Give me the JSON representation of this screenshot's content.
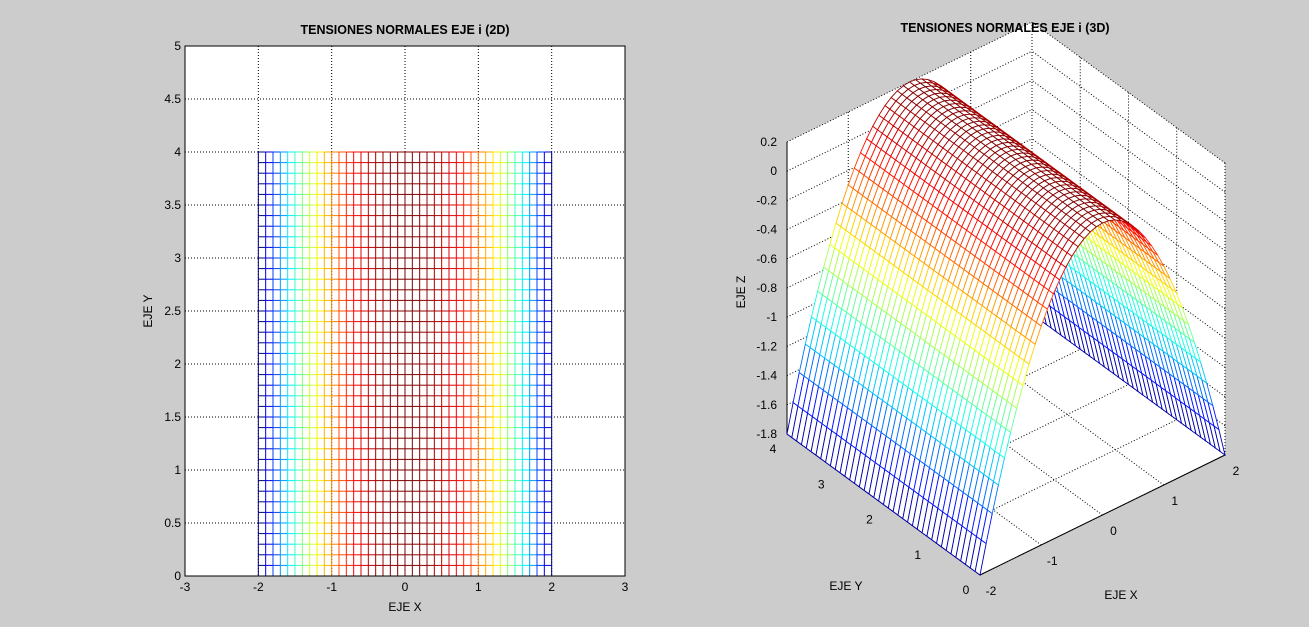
{
  "chart_data": [
    {
      "type": "heatmap",
      "title": "TENSIONES NORMALES EJE i (2D)",
      "xlabel": "EJE X",
      "ylabel": "EJE Y",
      "xlim": [
        -3,
        3
      ],
      "ylim": [
        0,
        5
      ],
      "xticks": [
        "-3",
        "-2",
        "-1",
        "0",
        "1",
        "2",
        "3"
      ],
      "yticks": [
        "0",
        "0.5",
        "1",
        "1.5",
        "2",
        "2.5",
        "3",
        "3.5",
        "4",
        "4.5",
        "5"
      ],
      "grid": true,
      "mesh": {
        "x_range": [
          -2,
          2
        ],
        "x_step": 0.1,
        "y_range": [
          0,
          4
        ],
        "y_step": 0.1,
        "z_by_x": [
          -1.8,
          -1.605,
          -1.42,
          -1.245,
          -1.08,
          -0.925,
          -0.78,
          -0.645,
          -0.52,
          -0.405,
          -0.3,
          -0.205,
          -0.12,
          -0.045,
          0.02,
          0.075,
          0.12,
          0.155,
          0.18,
          0.195,
          0.2,
          0.195,
          0.18,
          0.155,
          0.12,
          0.075,
          0.02,
          -0.045,
          -0.12,
          -0.205,
          -0.3,
          -0.405,
          -0.52,
          -0.645,
          -0.78,
          -0.925,
          -1.08,
          -1.245,
          -1.42,
          -1.605,
          -1.8
        ],
        "colormap": "jet",
        "clim": [
          -1.8,
          0.2
        ]
      }
    },
    {
      "type": "heatmap",
      "title": "TENSIONES NORMALES EJE i (3D)",
      "xlabel": "EJE X",
      "ylabel": "EJE Y",
      "zlabel": "EJE Z",
      "xlim": [
        -2,
        2
      ],
      "ylim": [
        0,
        4
      ],
      "zlim": [
        -1.8,
        0.2
      ],
      "xticks": [
        "-2",
        "-1",
        "0",
        "1",
        "2"
      ],
      "yticks": [
        "0",
        "1",
        "2",
        "3",
        "4"
      ],
      "zticks": [
        "-1.8",
        "-1.6",
        "-1.4",
        "-1.2",
        "-1",
        "-0.8",
        "-0.6",
        "-0.4",
        "-0.2",
        "0",
        "0.2"
      ],
      "grid": true,
      "view": {
        "azimuth": -37.5,
        "elevation": 30
      },
      "colormap": "jet"
    }
  ]
}
